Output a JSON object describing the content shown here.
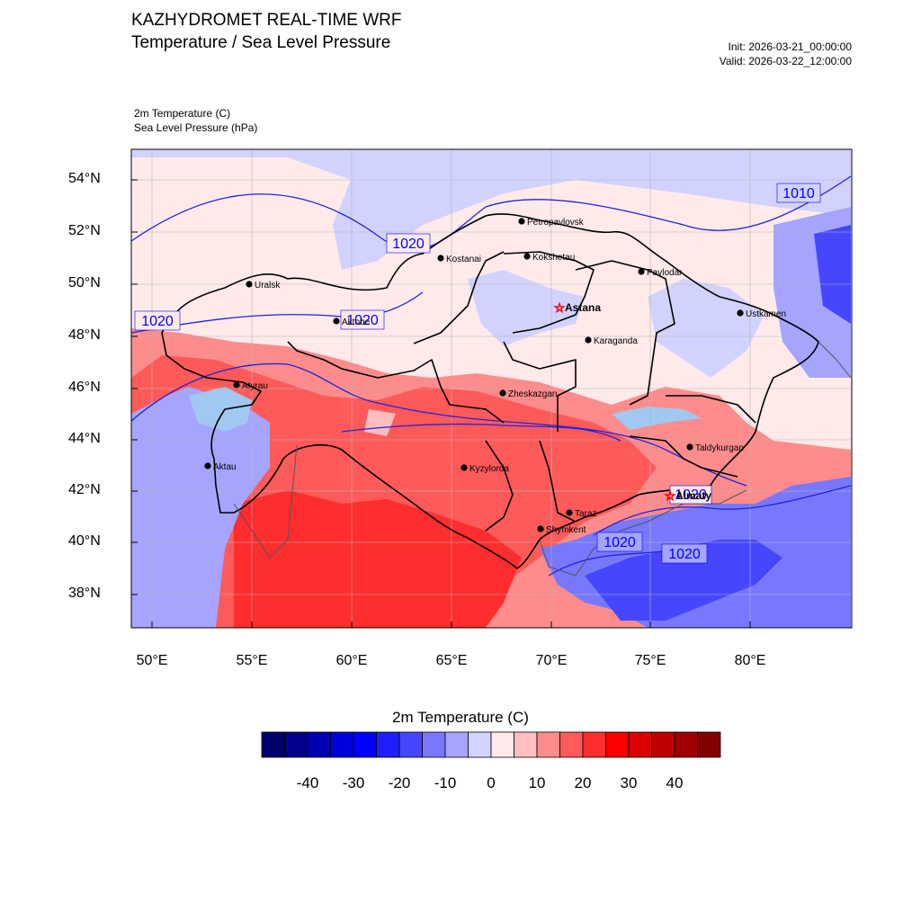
{
  "header": {
    "title_line1": "KAZHYDROMET REAL-TIME WRF",
    "title_line2": "Temperature / Sea Level Pressure",
    "init": "Init: 2026-03-21_00:00:00",
    "valid": "Valid: 2026-03-22_12:00:00",
    "field1": "2m Temperature   (C)",
    "field2": "Sea Level Pressure   (hPa)"
  },
  "axes": {
    "lat_labels": [
      "54°N",
      "52°N",
      "50°N",
      "48°N",
      "46°N",
      "44°N",
      "42°N",
      "40°N",
      "38°N"
    ],
    "lon_labels": [
      "50°E",
      "55°E",
      "60°E",
      "65°E",
      "70°E",
      "75°E",
      "80°E"
    ]
  },
  "map": {
    "isobar_labels": [
      "1010",
      "1020",
      "1020",
      "1020",
      "1020",
      "1020",
      "1020"
    ],
    "cities": [
      {
        "name": "Petropavlovsk"
      },
      {
        "name": "Kostanai"
      },
      {
        "name": "Kokshetau"
      },
      {
        "name": "Pavlodar"
      },
      {
        "name": "Uralsk"
      },
      {
        "name": "Astana"
      },
      {
        "name": "Aktobe"
      },
      {
        "name": "Ustkamen"
      },
      {
        "name": "Karaganda"
      },
      {
        "name": "Atyrau"
      },
      {
        "name": "Zheskazgan"
      },
      {
        "name": "Taldykurgan"
      },
      {
        "name": "Aktau"
      },
      {
        "name": "Kyzylorda"
      },
      {
        "name": "Almaty"
      },
      {
        "name": "Taraz"
      },
      {
        "name": "Shymkent"
      }
    ]
  },
  "colorbar": {
    "title": "2m Temperature  (C)",
    "labels": [
      "-40",
      "-30",
      "-20",
      "-10",
      "0",
      "10",
      "20",
      "30",
      "40"
    ],
    "colors": [
      "#00006e",
      "#00008c",
      "#0000b4",
      "#0000dc",
      "#0000ff",
      "#1e1eff",
      "#4646ff",
      "#7878ff",
      "#a5a5ff",
      "#d2d2ff",
      "#ffeaea",
      "#ffbebe",
      "#ff8c8c",
      "#ff5a5a",
      "#ff2d2d",
      "#ff0000",
      "#dc0000",
      "#be0000",
      "#a00000",
      "#820000"
    ]
  }
}
